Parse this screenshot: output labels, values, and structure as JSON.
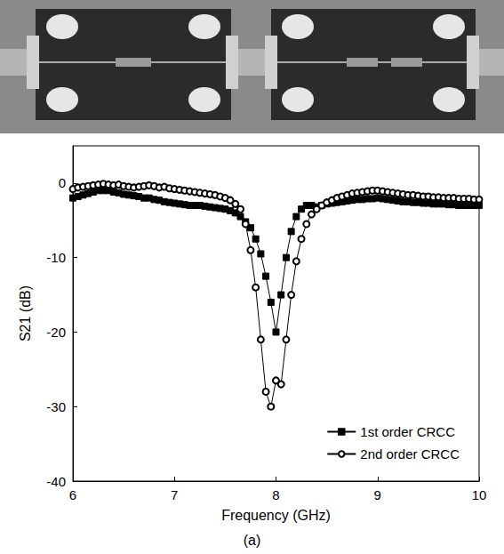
{
  "chart_data": {
    "type": "line",
    "x_label": "Frequency (GHz)",
    "y_label": "S21 (dB)",
    "caption": "(a)",
    "x": [
      6,
      6.05,
      6.1,
      6.15,
      6.2,
      6.25,
      6.3,
      6.35,
      6.4,
      6.45,
      6.5,
      6.55,
      6.6,
      6.65,
      6.7,
      6.75,
      6.8,
      6.85,
      6.9,
      6.95,
      7,
      7.05,
      7.1,
      7.15,
      7.2,
      7.25,
      7.3,
      7.35,
      7.4,
      7.45,
      7.5,
      7.55,
      7.6,
      7.65,
      7.7,
      7.75,
      7.8,
      7.85,
      7.9,
      7.95,
      8,
      8.05,
      8.1,
      8.15,
      8.2,
      8.25,
      8.3,
      8.35,
      8.4,
      8.45,
      8.5,
      8.55,
      8.6,
      8.65,
      8.7,
      8.75,
      8.8,
      8.85,
      8.9,
      8.95,
      9,
      9.05,
      9.1,
      9.15,
      9.2,
      9.25,
      9.3,
      9.35,
      9.4,
      9.45,
      9.5,
      9.55,
      9.6,
      9.65,
      9.7,
      9.75,
      9.8,
      9.85,
      9.9,
      9.95,
      10
    ],
    "xlim": [
      6,
      10
    ],
    "xticks": [
      6,
      7,
      8,
      9,
      10
    ],
    "ylim": [
      -40,
      5
    ],
    "yticks": [
      -40,
      -30,
      -20,
      -10,
      0
    ],
    "grid": false,
    "legend": "lower right",
    "series": [
      {
        "name": "1st order CRCC",
        "color": "#000000",
        "marker": "square",
        "values": [
          -2.0,
          -1.8,
          -1.6,
          -1.4,
          -1.2,
          -1.0,
          -1.0,
          -1.0,
          -1.2,
          -1.3,
          -1.5,
          -1.6,
          -1.7,
          -1.8,
          -2.0,
          -2.0,
          -2.2,
          -2.3,
          -2.5,
          -2.6,
          -2.7,
          -2.8,
          -2.9,
          -3.0,
          -3.0,
          -3.0,
          -3.1,
          -3.2,
          -3.3,
          -3.4,
          -3.5,
          -3.7,
          -4.0,
          -4.5,
          -5.2,
          -6.0,
          -7.5,
          -9.5,
          -12.5,
          -16.0,
          -20.0,
          -15.0,
          -10.0,
          -6.5,
          -4.5,
          -3.5,
          -3.0,
          -3.0,
          -3.2,
          -3.0,
          -2.8,
          -2.7,
          -2.6,
          -2.5,
          -2.4,
          -2.3,
          -2.2,
          -2.2,
          -2.1,
          -2.1,
          -2.0,
          -2.1,
          -2.2,
          -2.3,
          -2.4,
          -2.5,
          -2.5,
          -2.6,
          -2.6,
          -2.7,
          -2.7,
          -2.8,
          -2.8,
          -2.8,
          -2.9,
          -2.9,
          -3.0,
          -3.0,
          -3.0,
          -3.0,
          -3.0
        ]
      },
      {
        "name": "2nd order CRCC",
        "color": "#000000",
        "marker": "circle-open",
        "values": [
          -0.8,
          -0.6,
          -0.5,
          -0.4,
          -0.3,
          -0.2,
          -0.1,
          -0.2,
          -0.3,
          -0.2,
          -0.4,
          -0.5,
          -0.6,
          -0.5,
          -0.4,
          -0.3,
          -0.4,
          -0.6,
          -0.5,
          -0.7,
          -0.8,
          -0.9,
          -1.0,
          -1.1,
          -1.2,
          -1.3,
          -1.4,
          -1.5,
          -1.6,
          -1.8,
          -2.0,
          -2.3,
          -2.8,
          -3.5,
          -5.5,
          -9.0,
          -14.0,
          -21.0,
          -28.0,
          -30.0,
          -26.5,
          -27.0,
          -21.0,
          -15.0,
          -10.5,
          -7.5,
          -5.5,
          -4.2,
          -3.5,
          -3.0,
          -2.6,
          -2.3,
          -2.0,
          -1.8,
          -1.6,
          -1.4,
          -1.3,
          -1.2,
          -1.1,
          -1.0,
          -1.0,
          -1.1,
          -1.2,
          -1.3,
          -1.4,
          -1.5,
          -1.6,
          -1.6,
          -1.7,
          -1.8,
          -1.8,
          -1.9,
          -1.9,
          -2.0,
          -2.0,
          -2.0,
          -2.1,
          -2.1,
          -2.1,
          -2.2,
          -2.2
        ]
      }
    ]
  }
}
